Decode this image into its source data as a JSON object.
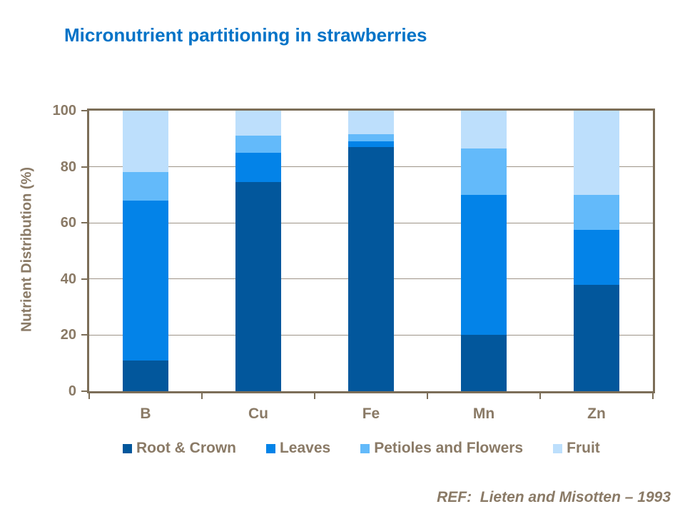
{
  "title": "Micronutrient partitioning in strawberries",
  "footer": {
    "ref": "REF:  Lieten and Misotten – 1993"
  },
  "colors": {
    "title_blue": "#0173C7",
    "text_brown": "#8A7A66",
    "axis_brown": "#7C6E58",
    "grid_brown": "#9E9488",
    "background": "#FFFFFF"
  },
  "chart_data": {
    "type": "bar",
    "stacked": true,
    "title": "Micronutrient partitioning in strawberries",
    "xlabel": "",
    "ylabel": "Nutrient Distribution (%)",
    "categories": [
      "B",
      "Cu",
      "Fe",
      "Mn",
      "Zn"
    ],
    "series": [
      {
        "name": "Root & Crown",
        "color": "#02579C",
        "values": [
          11,
          74.5,
          87,
          20,
          38
        ]
      },
      {
        "name": "Leaves",
        "color": "#0383E8",
        "values": [
          57,
          10.5,
          2,
          50,
          19.5
        ]
      },
      {
        "name": "Petioles and Flowers",
        "color": "#63BAFA",
        "values": [
          10,
          6,
          2.5,
          16.5,
          12.5
        ]
      },
      {
        "name": "Fruit",
        "color": "#BDDFFC",
        "values": [
          22,
          9,
          8.5,
          13.5,
          30
        ]
      }
    ],
    "ylim": [
      0,
      100
    ],
    "yticks": [
      0,
      20,
      40,
      60,
      80,
      100
    ],
    "grid": true,
    "legend_position": "bottom"
  }
}
